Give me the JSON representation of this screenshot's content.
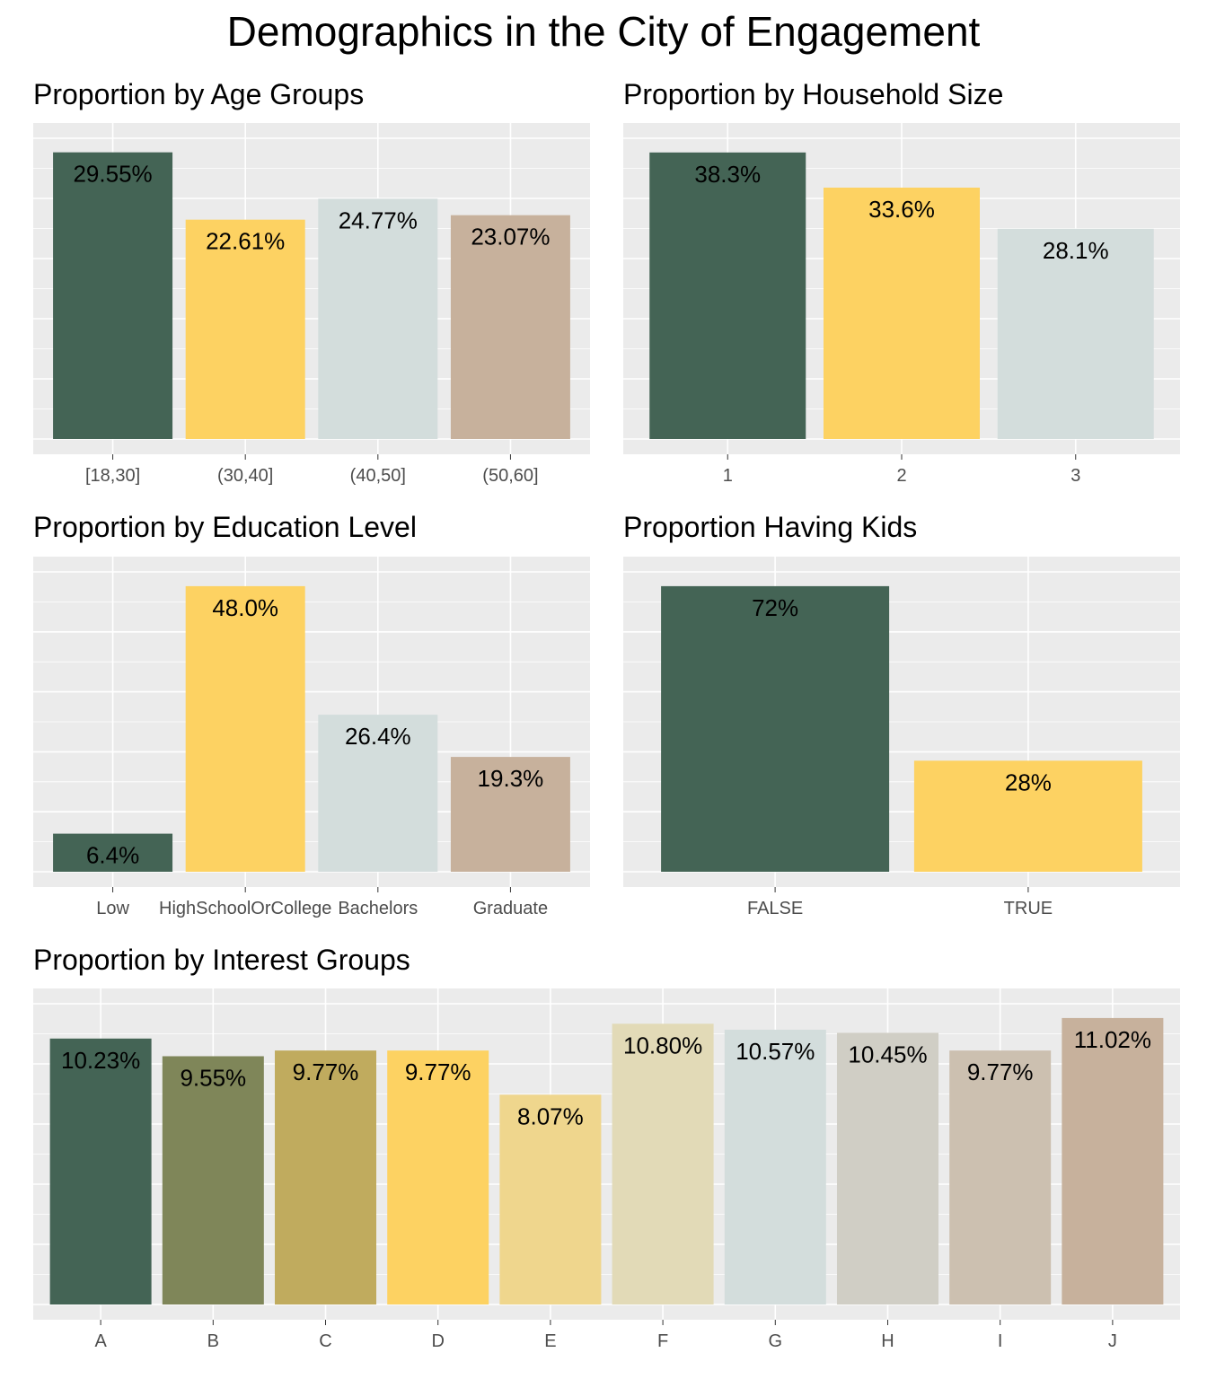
{
  "title": "Demographics in the City of Engagement",
  "colors": {
    "panel_bg": "#ebebeb",
    "grid": "#ffffff",
    "tick_text": "#4d4d4d"
  },
  "chart_data": [
    {
      "type": "bar",
      "title": "Proportion by Age Groups",
      "categories": [
        "[18,30]",
        "(30,40]",
        "(40,50]",
        "(50,60]"
      ],
      "values": [
        29.55,
        22.61,
        24.77,
        23.07
      ],
      "labels": [
        "29.55%",
        "22.61%",
        "24.77%",
        "23.07%"
      ],
      "colors": [
        "#446455",
        "#FDD262",
        "#D3DDDC",
        "#C7B19C"
      ],
      "ylim": [
        0,
        31.0
      ]
    },
    {
      "type": "bar",
      "title": "Proportion by Household Size",
      "categories": [
        "1",
        "2",
        "3"
      ],
      "values": [
        38.3,
        33.6,
        28.1
      ],
      "labels": [
        "38.3%",
        "33.6%",
        "28.1%"
      ],
      "colors": [
        "#446455",
        "#FDD262",
        "#D3DDDC"
      ],
      "ylim": [
        0,
        40.2
      ]
    },
    {
      "type": "bar",
      "title": "Proportion by Education Level",
      "categories": [
        "Low",
        "HighSchoolOrCollege",
        "Bachelors",
        "Graduate"
      ],
      "values": [
        6.4,
        48.0,
        26.4,
        19.3
      ],
      "labels": [
        "6.4%",
        "48.0%",
        "26.4%",
        "19.3%"
      ],
      "colors": [
        "#446455",
        "#FDD262",
        "#D3DDDC",
        "#C7B19C"
      ],
      "ylim": [
        0,
        50.4
      ]
    },
    {
      "type": "bar",
      "title": "Proportion Having Kids",
      "categories": [
        "FALSE",
        "TRUE"
      ],
      "values": [
        72,
        28
      ],
      "labels": [
        "72%",
        "28%"
      ],
      "colors": [
        "#446455",
        "#FDD262"
      ],
      "ylim": [
        0,
        75.6
      ]
    },
    {
      "type": "bar",
      "title": "Proportion by Interest Groups",
      "categories": [
        "A",
        "B",
        "C",
        "D",
        "E",
        "F",
        "G",
        "H",
        "I",
        "J"
      ],
      "values": [
        10.23,
        9.55,
        9.77,
        9.77,
        8.07,
        10.8,
        10.57,
        10.45,
        9.77,
        11.02
      ],
      "labels": [
        "10.23%",
        "9.55%",
        "9.77%",
        "9.77%",
        "8.07%",
        "10.80%",
        "10.57%",
        "10.45%",
        "9.77%",
        "11.02%"
      ],
      "colors": [
        "#446455",
        "#7F8659",
        "#C0AB5E",
        "#FDD262",
        "#EFD68D",
        "#E2DAB7",
        "#D3DDDC",
        "#D0CEC5",
        "#CCC0B0",
        "#C7B19C"
      ],
      "ylim": [
        0,
        11.57
      ]
    }
  ]
}
